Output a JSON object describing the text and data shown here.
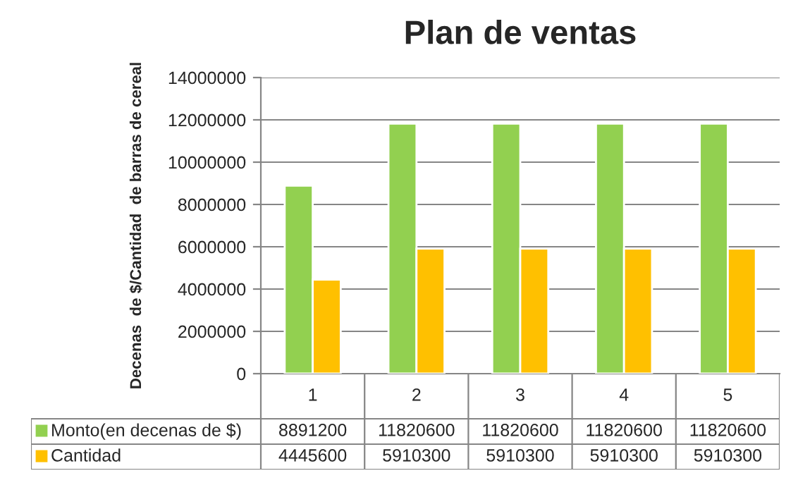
{
  "chart_data": {
    "type": "bar",
    "title": "Plan de ventas",
    "ylabel": "Decenas  de $/Cantidad  de barras de cereal",
    "categories": [
      "1",
      "2",
      "3",
      "4",
      "5"
    ],
    "series": [
      {
        "name": "Monto(en decenas de $)",
        "color": "#92d050",
        "values": [
          8891200,
          11820600,
          11820600,
          11820600,
          11820600
        ]
      },
      {
        "name": "Cantidad",
        "color": "#ffc000",
        "values": [
          4445600,
          5910300,
          5910300,
          5910300,
          5910300
        ]
      }
    ],
    "ylim": [
      0,
      14000000
    ],
    "yticks": [
      0,
      2000000,
      4000000,
      6000000,
      8000000,
      10000000,
      12000000,
      14000000
    ],
    "grid": "y",
    "legend": "bottom",
    "data_labels": true
  }
}
